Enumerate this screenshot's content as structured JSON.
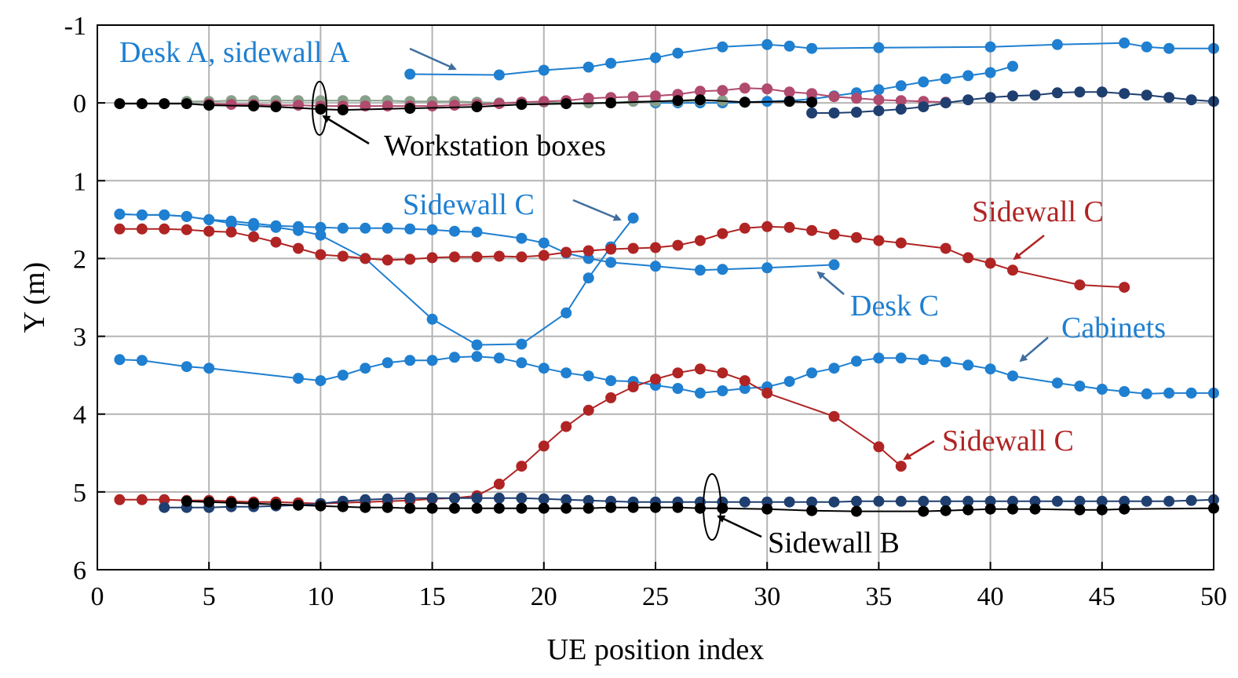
{
  "chart_data": {
    "type": "line",
    "xlabel": "UE position index",
    "ylabel": "Y (m)",
    "xlim": [
      0,
      50
    ],
    "ylim": [
      -1,
      6
    ],
    "y_inverted": true,
    "grid": true,
    "xticks": [
      "0",
      "5",
      "10",
      "15",
      "20",
      "25",
      "30",
      "35",
      "40",
      "45",
      "50"
    ],
    "yticks": [
      "-1",
      "0",
      "1",
      "2",
      "3",
      "4",
      "5",
      "6"
    ],
    "colors": {
      "light_blue": "#1f7fd0",
      "navy": "#1f3f70",
      "red": "#b02424",
      "pink": "#b04a6e",
      "gray_green": "#88a08a",
      "black": "#000000",
      "arrow_blue": "#3f6f9f"
    },
    "series": [
      {
        "color": "light_blue",
        "x": [
          14,
          18,
          20,
          22,
          23,
          25,
          26,
          28,
          30,
          31,
          32,
          35,
          40,
          43,
          46,
          47,
          48,
          50
        ],
        "y": [
          -0.37,
          -0.36,
          -0.42,
          -0.46,
          -0.51,
          -0.58,
          -0.64,
          -0.72,
          -0.75,
          -0.73,
          -0.7,
          -0.71,
          -0.72,
          -0.75,
          -0.77,
          -0.72,
          -0.7,
          -0.7
        ]
      },
      {
        "color": "light_blue",
        "x": [
          25,
          26,
          27,
          28,
          29,
          30,
          31,
          32,
          33,
          34,
          35,
          36,
          37,
          38,
          39,
          40,
          41
        ],
        "y": [
          0.0,
          0.0,
          0.0,
          0.0,
          -0.01,
          -0.02,
          -0.03,
          -0.05,
          -0.09,
          -0.13,
          -0.17,
          -0.22,
          -0.27,
          -0.31,
          -0.35,
          -0.39,
          -0.47
        ]
      },
      {
        "color": "gray_green",
        "x": [
          4,
          5,
          6,
          7,
          8,
          9,
          10,
          11,
          12,
          13,
          14,
          15,
          16,
          17,
          18,
          19,
          20,
          21,
          22,
          23,
          24,
          25,
          26,
          27,
          28
        ],
        "y": [
          -0.02,
          -0.02,
          -0.03,
          -0.03,
          -0.03,
          -0.03,
          -0.03,
          -0.03,
          -0.03,
          -0.03,
          -0.02,
          -0.02,
          -0.02,
          -0.01,
          0.0,
          -0.01,
          -0.01,
          0.0,
          0.0,
          0.0,
          -0.02,
          -0.02,
          -0.02,
          -0.03,
          -0.03
        ]
      },
      {
        "color": "pink",
        "x": [
          5,
          6,
          7,
          8,
          9,
          10,
          11,
          12,
          13,
          14,
          15,
          16,
          17,
          18,
          19,
          20,
          21,
          22,
          23,
          24,
          25,
          26,
          27,
          28,
          29,
          30,
          31,
          32,
          33,
          34,
          35,
          36,
          37,
          38
        ],
        "y": [
          0.01,
          0.02,
          0.02,
          0.03,
          0.03,
          0.04,
          0.04,
          0.04,
          0.04,
          0.04,
          0.04,
          0.03,
          0.02,
          0.01,
          -0.01,
          -0.02,
          -0.03,
          -0.06,
          -0.07,
          -0.08,
          -0.09,
          -0.11,
          -0.15,
          -0.16,
          -0.19,
          -0.18,
          -0.14,
          -0.12,
          -0.08,
          -0.06,
          -0.04,
          -0.03,
          -0.02,
          -0.01
        ]
      },
      {
        "color": "black",
        "x": [
          1,
          2,
          3,
          4,
          5,
          7,
          8,
          10,
          11,
          14,
          17,
          19,
          21,
          23,
          26,
          27,
          29,
          31,
          32
        ],
        "y": [
          0.01,
          0.01,
          0.01,
          0.01,
          0.03,
          0.04,
          0.05,
          0.08,
          0.09,
          0.07,
          0.05,
          0.02,
          0.01,
          0.0,
          -0.03,
          -0.04,
          -0.01,
          -0.02,
          -0.01
        ]
      },
      {
        "color": "navy",
        "x": [
          32,
          33,
          34,
          35,
          36,
          37,
          38,
          39,
          40,
          41,
          42,
          43,
          44,
          45,
          46,
          47,
          48,
          49,
          50
        ],
        "y": [
          0.13,
          0.13,
          0.12,
          0.1,
          0.08,
          0.05,
          0.0,
          -0.04,
          -0.07,
          -0.09,
          -0.1,
          -0.13,
          -0.14,
          -0.14,
          -0.12,
          -0.1,
          -0.07,
          -0.04,
          -0.02
        ]
      },
      {
        "color": "light_blue",
        "x": [
          1,
          2,
          3,
          4,
          5,
          6,
          7,
          8,
          9,
          10,
          11,
          12,
          13,
          14,
          15,
          16,
          17,
          19,
          20,
          21,
          22,
          23,
          25,
          27,
          28,
          30,
          33
        ],
        "y": [
          1.43,
          1.44,
          1.44,
          1.46,
          1.5,
          1.52,
          1.55,
          1.58,
          1.59,
          1.6,
          1.61,
          1.61,
          1.61,
          1.62,
          1.63,
          1.65,
          1.66,
          1.74,
          1.8,
          1.93,
          2.0,
          2.05,
          2.1,
          2.15,
          2.14,
          2.12,
          2.08
        ]
      },
      {
        "color": "light_blue",
        "x": [
          1,
          2,
          3,
          4,
          5,
          6,
          7,
          8,
          9,
          10,
          12,
          15,
          17,
          19,
          21,
          22,
          23,
          24
        ],
        "y": [
          1.43,
          1.44,
          1.44,
          1.46,
          1.5,
          1.55,
          1.58,
          1.6,
          1.64,
          1.7,
          2.0,
          2.78,
          3.11,
          3.1,
          2.7,
          2.25,
          1.85,
          1.48
        ]
      },
      {
        "color": "red",
        "x": [
          1,
          2,
          3,
          4,
          5,
          6,
          7,
          8,
          9,
          10,
          11,
          12,
          13,
          14,
          15,
          16,
          17,
          18,
          19,
          20,
          21,
          22,
          23,
          24,
          25,
          26,
          27,
          28,
          29,
          30,
          31,
          32,
          33,
          34,
          35,
          36,
          38,
          39,
          40,
          41,
          44,
          46
        ],
        "y": [
          1.62,
          1.62,
          1.62,
          1.63,
          1.65,
          1.66,
          1.72,
          1.79,
          1.87,
          1.95,
          1.97,
          2.0,
          2.02,
          2.01,
          1.99,
          1.98,
          1.98,
          1.97,
          1.98,
          1.96,
          1.92,
          1.9,
          1.88,
          1.87,
          1.86,
          1.83,
          1.77,
          1.68,
          1.61,
          1.59,
          1.6,
          1.64,
          1.69,
          1.73,
          1.77,
          1.8,
          1.87,
          1.99,
          2.06,
          2.15,
          2.34,
          2.37
        ]
      },
      {
        "color": "light_blue",
        "x": [
          1,
          2,
          4,
          5,
          9,
          10,
          11,
          12,
          13,
          14,
          15,
          16,
          17,
          18,
          19,
          20,
          21,
          22,
          23,
          24,
          25,
          26,
          27,
          28,
          29,
          30,
          31,
          32,
          33,
          34,
          35,
          36,
          37,
          38,
          39,
          40,
          41,
          43,
          44,
          45,
          46,
          47,
          48,
          49,
          50
        ],
        "y": [
          3.3,
          3.31,
          3.39,
          3.41,
          3.54,
          3.57,
          3.5,
          3.41,
          3.34,
          3.31,
          3.31,
          3.27,
          3.26,
          3.28,
          3.34,
          3.41,
          3.47,
          3.51,
          3.57,
          3.58,
          3.63,
          3.67,
          3.73,
          3.7,
          3.67,
          3.65,
          3.58,
          3.47,
          3.41,
          3.32,
          3.28,
          3.28,
          3.3,
          3.33,
          3.37,
          3.42,
          3.51,
          3.6,
          3.64,
          3.68,
          3.71,
          3.74,
          3.73,
          3.73,
          3.73
        ]
      },
      {
        "color": "red",
        "x": [
          1,
          2,
          3,
          4,
          5,
          6,
          7,
          8,
          9,
          10,
          11,
          12,
          13,
          14,
          15,
          16,
          17,
          18,
          19,
          20,
          21,
          22,
          23,
          24,
          25,
          26,
          27,
          28,
          29,
          30,
          33,
          35,
          36
        ],
        "y": [
          5.1,
          5.1,
          5.1,
          5.11,
          5.11,
          5.12,
          5.13,
          5.13,
          5.14,
          5.15,
          5.14,
          5.13,
          5.12,
          5.11,
          5.09,
          5.08,
          5.05,
          4.9,
          4.67,
          4.41,
          4.16,
          3.95,
          3.79,
          3.65,
          3.55,
          3.47,
          3.42,
          3.47,
          3.57,
          3.73,
          4.03,
          4.42,
          4.67
        ]
      },
      {
        "color": "navy",
        "x": [
          3,
          4,
          5,
          6,
          7,
          8,
          9,
          10,
          11,
          12,
          13,
          14,
          15,
          16,
          17,
          18,
          19,
          20,
          21,
          22,
          23,
          24,
          25,
          26,
          27,
          28,
          29,
          30,
          31,
          32,
          33,
          34,
          35,
          36,
          37,
          38,
          39,
          40,
          41,
          42,
          43,
          44,
          45,
          46,
          47,
          48,
          49,
          50
        ],
        "y": [
          5.2,
          5.2,
          5.2,
          5.19,
          5.19,
          5.18,
          5.17,
          5.15,
          5.12,
          5.1,
          5.09,
          5.08,
          5.08,
          5.08,
          5.08,
          5.08,
          5.08,
          5.09,
          5.1,
          5.11,
          5.12,
          5.13,
          5.13,
          5.13,
          5.13,
          5.13,
          5.13,
          5.13,
          5.13,
          5.13,
          5.13,
          5.12,
          5.12,
          5.12,
          5.12,
          5.12,
          5.12,
          5.12,
          5.12,
          5.12,
          5.12,
          5.12,
          5.12,
          5.12,
          5.12,
          5.12,
          5.11,
          5.1
        ]
      },
      {
        "color": "black",
        "x": [
          4,
          5,
          6,
          7,
          8,
          9,
          10,
          11,
          12,
          13,
          14,
          15,
          16,
          17,
          18,
          19,
          20,
          21,
          22,
          23,
          24,
          25,
          26,
          27,
          28,
          30,
          32,
          34,
          37,
          38,
          39,
          40,
          41,
          42,
          44,
          45,
          46,
          50
        ],
        "y": [
          5.12,
          5.13,
          5.14,
          5.15,
          5.16,
          5.17,
          5.18,
          5.19,
          5.2,
          5.2,
          5.21,
          5.21,
          5.21,
          5.21,
          5.21,
          5.21,
          5.21,
          5.21,
          5.21,
          5.2,
          5.2,
          5.2,
          5.2,
          5.21,
          5.21,
          5.22,
          5.24,
          5.25,
          5.25,
          5.24,
          5.23,
          5.22,
          5.22,
          5.22,
          5.23,
          5.23,
          5.22,
          5.21
        ]
      }
    ],
    "annotations": [
      {
        "text": "Desk A, sidewall A",
        "color": "light_blue"
      },
      {
        "text": "Workstation boxes",
        "color": "black"
      },
      {
        "text": "Sidewall C",
        "color": "light_blue"
      },
      {
        "text": "Sidewall C",
        "color": "red"
      },
      {
        "text": "Desk C",
        "color": "light_blue"
      },
      {
        "text": "Cabinets",
        "color": "light_blue"
      },
      {
        "text": "Sidewall C",
        "color": "red"
      },
      {
        "text": "Sidewall B",
        "color": "black"
      }
    ]
  }
}
